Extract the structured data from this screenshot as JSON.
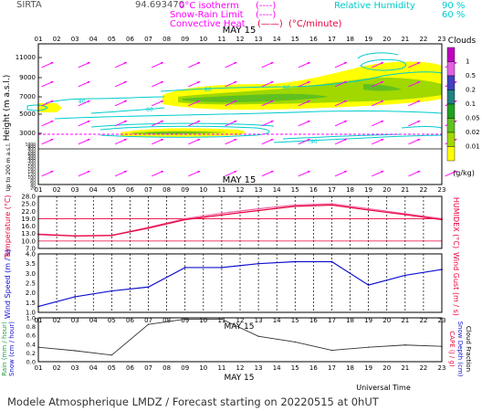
{
  "header": {
    "station": "SIRTA",
    "coords": "94.693470",
    "isotherm_label": "0°C isotherm",
    "snow_rain_label": "Snow-Rain Limit",
    "convective_label": "Convective Heat",
    "convective_unit": "(°C/minute)",
    "rh_label": "Relative Humidity",
    "rh_90": "90 %",
    "rh_60": "60 %",
    "line_symbol": "(----)",
    "line_symbol2": "(----)",
    "line_symbol3": "(——)"
  },
  "colors": {
    "magenta": "#ff00ff",
    "cyan": "#00cccc",
    "red": "#e8003c",
    "blue": "#1010d0",
    "gray": "#8a8a8a"
  },
  "chart_data": [
    {
      "type": "heatmap",
      "panel": "clouds",
      "title": "MAY 15",
      "ylabel": "Height (m a.s.l.)",
      "ylabel_low": "Up to 200 m a.s.l.",
      "y_ticks": [
        "11000",
        "9000",
        "7000",
        "5000",
        "3000",
        "1000",
        "900",
        "800",
        "700",
        "600",
        "500",
        "400",
        "300",
        "200",
        "180",
        "160",
        "140",
        "120",
        "100",
        "80",
        "60",
        "40",
        "20"
      ],
      "x_ticks": [
        "01",
        "02",
        "03",
        "04",
        "05",
        "06",
        "07",
        "08",
        "09",
        "10",
        "11",
        "12",
        "13",
        "14",
        "15",
        "16",
        "17",
        "18",
        "19",
        "20",
        "21",
        "22",
        "23"
      ],
      "colorbar_title": "Clouds",
      "colorbar_unit": "(g/kg)",
      "colorbar_ticks": [
        "1",
        "0.5",
        "0.2",
        "0.1",
        "0.05",
        "0.02",
        "0.01"
      ],
      "colorbar_colors": [
        "#c000c0",
        "#e060e0",
        "#4040c0",
        "#208080",
        "#20a020",
        "#60c020",
        "#a0d800",
        "#ffff00"
      ],
      "contour_labels": [
        "80",
        "60",
        "90",
        "80",
        "60"
      ]
    },
    {
      "type": "line",
      "panel": "temperature",
      "title": "MAY 15",
      "ylabel": "Temperature (°C)",
      "ylabel_right": "HUMIDEX (°C)",
      "y_ticks": [
        "28.0",
        "25.0",
        "22.0",
        "19.0",
        "16.0",
        "13.0",
        "10.0",
        "7.0"
      ],
      "ylim": [
        7,
        28
      ],
      "x": [
        1,
        3,
        5,
        7,
        9,
        11,
        13,
        15,
        17,
        19,
        21,
        23
      ],
      "series": [
        {
          "values": [
            12.8,
            12.1,
            12.3,
            15.5,
            19.0,
            21.2,
            23.0,
            24.5,
            25.0,
            23.0,
            21.0,
            19.0
          ]
        },
        {
          "values": [
            12.6,
            12.0,
            12.2,
            15.2,
            18.6,
            20.5,
            22.3,
            24.0,
            24.5,
            22.5,
            20.6,
            18.6
          ]
        }
      ],
      "ref_lines": [
        19.0,
        10.0
      ]
    },
    {
      "type": "line",
      "panel": "wind",
      "ylabel": "Wind Speed (m / s)",
      "ylabel_right": "Wind Gust (m / s)",
      "y_ticks": [
        "4.0",
        "3.5",
        "3.0",
        "2.5",
        "2.0",
        "1.5",
        "1.0"
      ],
      "ylim": [
        1.0,
        4.0
      ],
      "x": [
        1,
        3,
        5,
        7,
        9,
        11,
        13,
        15,
        17,
        19,
        21,
        23
      ],
      "series": [
        {
          "values": [
            1.3,
            1.8,
            2.1,
            2.3,
            3.3,
            3.3,
            3.5,
            3.6,
            3.6,
            2.4,
            2.9,
            3.2
          ]
        }
      ]
    },
    {
      "type": "line",
      "panel": "precip",
      "title": "MAY 15",
      "ylabel": "Rain (mm / hour)",
      "ylabel2": "Snow (cm / hour)",
      "ylabel_right": "CAPE (J / g)",
      "ylabel_right2": "Snow Depth (cm)",
      "ylabel_right3": "Cloud Fraction",
      "y_ticks": [
        "1.0",
        "0.8",
        "0.6",
        "0.4",
        "0.2",
        "0.0"
      ],
      "ylim": [
        0,
        1.0
      ],
      "x": [
        1,
        3,
        5,
        7,
        9,
        11,
        13,
        15,
        17,
        19,
        21,
        23
      ],
      "series": [
        {
          "values": [
            0.33,
            0.25,
            0.15,
            0.85,
            0.97,
            0.97,
            0.58,
            0.45,
            0.26,
            0.33,
            0.38,
            0.35
          ]
        }
      ],
      "xlabel": "Universal Time",
      "x_title": "MAY 15"
    }
  ],
  "footer": {
    "text": "Modele Atmospherique LMDZ / Forecast starting on 20220515 at 0hUT"
  }
}
